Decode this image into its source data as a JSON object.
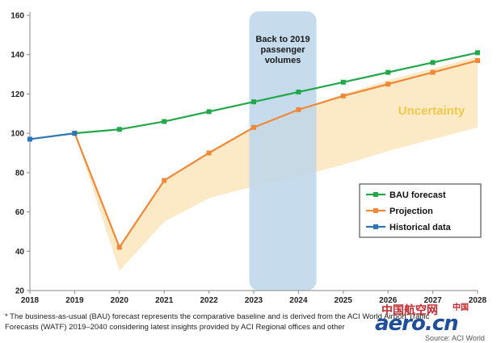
{
  "chart_data": {
    "type": "line",
    "x": [
      2018,
      2019,
      2020,
      2021,
      2022,
      2023,
      2024,
      2025,
      2026,
      2027,
      2028
    ],
    "x_tick_labels": [
      "2018",
      "2019",
      "2020",
      "2021",
      "2022",
      "2023",
      "2024",
      "2025",
      "2026",
      "2027",
      "2028"
    ],
    "ylim": [
      20,
      160
    ],
    "y_ticks": [
      20,
      40,
      60,
      80,
      100,
      120,
      140,
      160
    ],
    "grid": false,
    "series": [
      {
        "name": "BAU forecast",
        "color": "#22a84a",
        "x": [
          2019,
          2020,
          2021,
          2022,
          2023,
          2024,
          2025,
          2026,
          2027,
          2028
        ],
        "values": [
          100,
          102,
          106,
          111,
          116,
          121,
          126,
          131,
          136,
          141
        ]
      },
      {
        "name": "Projection",
        "color": "#f0883a",
        "x": [
          2019,
          2020,
          2021,
          2022,
          2023,
          2024,
          2025,
          2026,
          2027,
          2028
        ],
        "values": [
          100,
          42,
          76,
          90,
          103,
          112,
          119,
          125,
          131,
          137
        ]
      },
      {
        "name": "Historical data",
        "color": "#2e75b6",
        "x": [
          2018,
          2019
        ],
        "values": [
          97,
          100
        ]
      }
    ],
    "uncertainty_band": {
      "color": "#fbe9c2",
      "label": "Uncertainty",
      "label_color": "#f2c84b",
      "x": [
        2019,
        2020,
        2021,
        2022,
        2023,
        2024,
        2025,
        2026,
        2027,
        2028
      ],
      "lower": [
        100,
        30,
        55,
        67,
        73,
        78,
        84,
        91,
        97,
        103
      ],
      "upper": [
        100,
        42,
        76,
        90,
        103,
        112,
        120,
        127,
        133,
        139
      ]
    },
    "highlight_band": {
      "label_lines": [
        "Back to 2019",
        "passenger",
        "volumes"
      ],
      "x_start": 2022.9,
      "x_end": 2024.4,
      "color": "#bcd6ea"
    },
    "legend": {
      "placement": "right",
      "items": [
        "BAU forecast",
        "Projection",
        "Historical data"
      ]
    }
  },
  "footnote": {
    "line1": "* The business-as-usual (BAU) forecast represents the comparative baseline and is derived from the ACI World Airport Traffic",
    "line2": "Forecasts (WATF) 2019–2040 considering latest insights provided by ACI Regional offices and other"
  },
  "watermark": {
    "cn_text": "中国航空网",
    "cn_small": "中国",
    "brand": "aero.cn",
    "source_text": "Source: ACI World"
  }
}
